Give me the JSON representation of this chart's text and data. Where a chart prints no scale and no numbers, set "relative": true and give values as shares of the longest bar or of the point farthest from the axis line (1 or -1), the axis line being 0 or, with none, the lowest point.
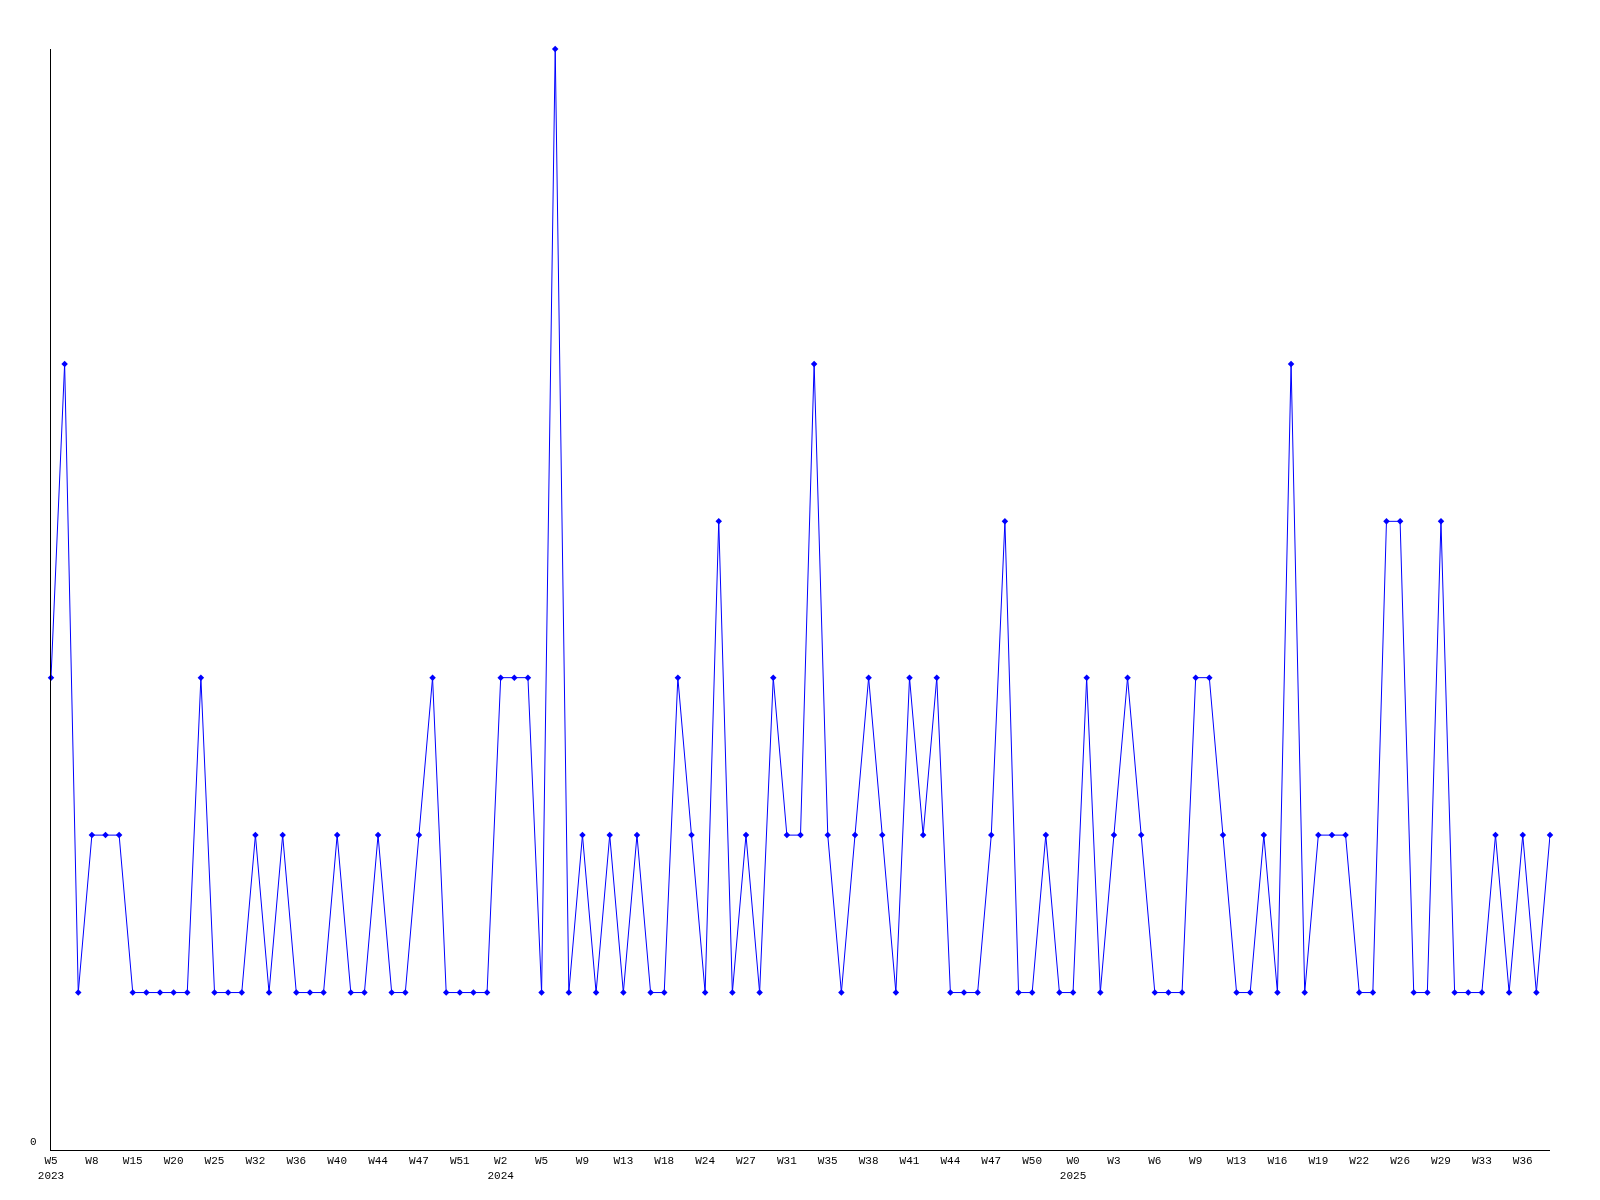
{
  "chart_data": {
    "type": "line",
    "relative": true,
    "color": "#0000ff",
    "marker": "diamond",
    "categories": [
      "W5\n2023",
      null,
      null,
      "W8",
      null,
      null,
      "W15",
      null,
      null,
      "W20",
      null,
      null,
      "W25",
      null,
      null,
      "W32",
      null,
      null,
      "W36",
      null,
      null,
      "W40",
      null,
      null,
      "W44",
      null,
      null,
      "W47",
      null,
      null,
      "W51",
      null,
      null,
      "W2\n2024",
      null,
      null,
      "W5",
      null,
      null,
      "W9",
      null,
      null,
      "W13",
      null,
      null,
      "W18",
      null,
      null,
      "W24",
      null,
      null,
      "W27",
      null,
      null,
      "W31",
      null,
      null,
      "W35",
      null,
      null,
      "W38",
      null,
      null,
      "W41",
      null,
      null,
      "W44",
      null,
      null,
      "W47",
      null,
      null,
      "W50",
      null,
      null,
      "W0\n2025",
      null,
      null,
      "W3",
      null,
      null,
      "W6",
      null,
      null,
      "W9",
      null,
      null,
      "W13",
      null,
      null,
      "W16",
      null,
      null,
      "W19",
      null,
      null,
      "W22",
      null,
      null,
      "W26",
      null,
      null,
      "W29",
      null,
      null,
      "W33",
      null,
      null,
      "W36",
      null,
      null
    ],
    "values": [
      0.429,
      0.714,
      0.143,
      0.286,
      0.286,
      0.286,
      0.143,
      0.143,
      0.143,
      0.143,
      0.143,
      0.429,
      0.143,
      0.143,
      0.143,
      0.286,
      0.143,
      0.286,
      0.143,
      0.143,
      0.143,
      0.286,
      0.143,
      0.143,
      0.286,
      0.143,
      0.143,
      0.286,
      0.429,
      0.143,
      0.143,
      0.143,
      0.143,
      0.429,
      0.429,
      0.429,
      0.143,
      1,
      0.143,
      0.286,
      0.143,
      0.286,
      0.143,
      0.286,
      0.143,
      0.143,
      0.429,
      0.286,
      0.143,
      0.571,
      0.143,
      0.286,
      0.143,
      0.429,
      0.286,
      0.286,
      0.714,
      0.286,
      0.143,
      0.286,
      0.429,
      0.286,
      0.143,
      0.429,
      0.286,
      0.429,
      0.143,
      0.143,
      0.143,
      0.286,
      0.571,
      0.143,
      0.143,
      0.286,
      0.143,
      0.143,
      0.429,
      0.143,
      0.286,
      0.429,
      0.286,
      0.143,
      0.143,
      0.143,
      0.429,
      0.429,
      0.286,
      0.143,
      0.143,
      0.286,
      0.143,
      0.714,
      0.143,
      0.286,
      0.286,
      0.286,
      0.143,
      0.143,
      0.571,
      0.571,
      0.143,
      0.143,
      0.571,
      0.143,
      0.143,
      0.143,
      0.286,
      0.143,
      0.286,
      0.143,
      0.286
    ],
    "annotations": [
      "0"
    ]
  }
}
